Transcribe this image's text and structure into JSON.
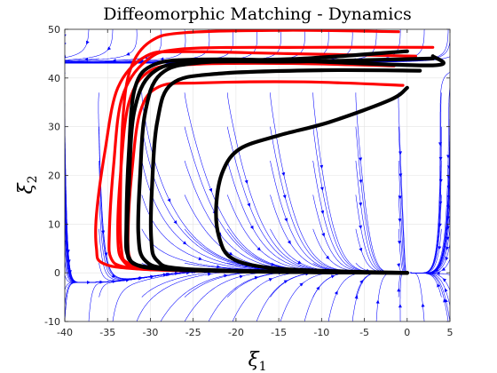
{
  "chart_data": {
    "type": "line",
    "title": "Diffeomorphic Matching - Dynamics",
    "xlabel": {
      "symbol": "ξ",
      "subscript": "1"
    },
    "ylabel": {
      "symbol": "ξ",
      "subscript": "2"
    },
    "xlim": [
      -40,
      5
    ],
    "ylim": [
      -10,
      50
    ],
    "xticks": [
      -40,
      -35,
      -30,
      -25,
      -20,
      -15,
      -10,
      -5,
      0,
      5
    ],
    "yticks": [
      -10,
      0,
      10,
      20,
      30,
      40,
      50
    ],
    "xtick_labels": [
      "-40",
      "-35",
      "-30",
      "-25",
      "-20",
      "-15",
      "-10",
      "-5",
      "0",
      "5"
    ],
    "ytick_labels": [
      "-10",
      "0",
      "10",
      "20",
      "30",
      "40",
      "50"
    ],
    "grid": true,
    "colors": {
      "streamlines": "#0000ff",
      "demonstrations": "#ff0000",
      "reproductions": "#000000",
      "grid": "#e3e3e3"
    },
    "attractor": [
      0,
      0
    ],
    "demonstrations": [
      [
        [
          -1,
          49.5
        ],
        [
          -14,
          49.8
        ],
        [
          -26,
          49.3
        ],
        [
          -30,
          47.5
        ],
        [
          -32.3,
          42
        ],
        [
          -33.2,
          32
        ],
        [
          -33.5,
          15
        ],
        [
          -33.4,
          5
        ],
        [
          -32.6,
          2
        ],
        [
          -29,
          0.8
        ],
        [
          -18,
          0.3
        ],
        [
          -8,
          0.1
        ],
        [
          0,
          0
        ]
      ],
      [
        [
          3,
          46.3
        ],
        [
          -12,
          46.3
        ],
        [
          -26,
          46
        ],
        [
          -30.5,
          43.5
        ],
        [
          -33.3,
          36
        ],
        [
          -34.3,
          22
        ],
        [
          -34.8,
          8
        ],
        [
          -34.6,
          3
        ],
        [
          -33,
          1.2
        ],
        [
          -28,
          0.5
        ],
        [
          -15,
          0.2
        ],
        [
          0,
          0
        ]
      ],
      [
        [
          -0.5,
          38.5
        ],
        [
          -12,
          39.2
        ],
        [
          -24,
          39
        ],
        [
          -29,
          38.2
        ],
        [
          -31.2,
          33
        ],
        [
          -32.2,
          20
        ],
        [
          -32.6,
          9
        ],
        [
          -32.4,
          3
        ],
        [
          -31,
          1.2
        ],
        [
          -26,
          0.5
        ],
        [
          -12,
          0.1
        ],
        [
          0,
          0
        ]
      ],
      [
        [
          1,
          44.5
        ],
        [
          -14,
          45
        ],
        [
          -26,
          45.4
        ],
        [
          -30.5,
          44.5
        ],
        [
          -33.8,
          38
        ],
        [
          -35.3,
          25
        ],
        [
          -36.3,
          12
        ],
        [
          -36.3,
          5
        ],
        [
          -35.6,
          2
        ],
        [
          -31.5,
          0.8
        ],
        [
          -20,
          0.3
        ],
        [
          0,
          0
        ]
      ],
      [
        [
          -1.5,
          42.5
        ],
        [
          -14,
          43
        ],
        [
          -25,
          42.8
        ],
        [
          -30,
          41.5
        ],
        [
          -32.5,
          35
        ],
        [
          -33.5,
          20
        ],
        [
          -33.8,
          7
        ],
        [
          -33.2,
          2.5
        ],
        [
          -31,
          1
        ],
        [
          -22,
          0.3
        ],
        [
          0,
          0
        ]
      ]
    ],
    "reproductions": [
      [
        [
          3,
          44.5
        ],
        [
          3,
          42.6
        ],
        [
          -14,
          43.6
        ],
        [
          -24,
          43.8
        ],
        [
          -29.5,
          42.8
        ],
        [
          -31.8,
          38
        ],
        [
          -32.5,
          25
        ],
        [
          -32.8,
          10
        ],
        [
          -32.6,
          3.5
        ],
        [
          -30.5,
          1.2
        ],
        [
          -22,
          0.4
        ],
        [
          -10,
          0.1
        ],
        [
          0,
          0
        ]
      ],
      [
        [
          3,
          44
        ],
        [
          -12,
          43.4
        ],
        [
          -25,
          43.2
        ],
        [
          -29.8,
          41
        ],
        [
          -31.9,
          33
        ],
        [
          -32.5,
          18
        ],
        [
          -32.7,
          6
        ],
        [
          -32,
          2
        ],
        [
          -28,
          0.7
        ],
        [
          -16,
          0.2
        ],
        [
          0,
          0
        ]
      ],
      [
        [
          0,
          45.5
        ],
        [
          -12,
          44
        ],
        [
          -24,
          43.2
        ],
        [
          -28.8,
          40.8
        ],
        [
          -30.6,
          33
        ],
        [
          -31.2,
          20
        ],
        [
          -31.4,
          8
        ],
        [
          -30.6,
          2.5
        ],
        [
          -27,
          0.8
        ],
        [
          -14,
          0.2
        ],
        [
          0,
          0
        ]
      ],
      [
        [
          1.5,
          41.5
        ],
        [
          -10,
          41.6
        ],
        [
          -22,
          40.9
        ],
        [
          -27.5,
          38.8
        ],
        [
          -29.2,
          31
        ],
        [
          -29.8,
          18
        ],
        [
          -29.9,
          7
        ],
        [
          -29.2,
          2.5
        ],
        [
          -26,
          0.8
        ],
        [
          -12,
          0.2
        ],
        [
          0,
          0
        ]
      ],
      [
        [
          0,
          38
        ],
        [
          -2,
          35.5
        ],
        [
          -9,
          31
        ],
        [
          -15,
          28.2
        ],
        [
          -19.5,
          25.5
        ],
        [
          -21.5,
          21
        ],
        [
          -22.3,
          14
        ],
        [
          -22,
          7.5
        ],
        [
          -20.5,
          3
        ],
        [
          -16,
          1
        ],
        [
          -8,
          0.3
        ],
        [
          0,
          0
        ]
      ]
    ]
  }
}
